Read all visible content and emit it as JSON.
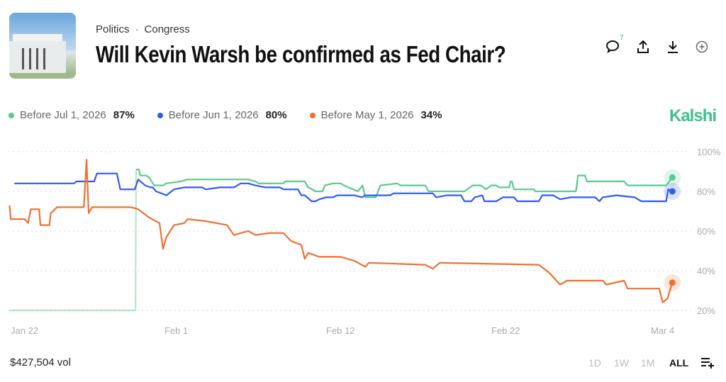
{
  "header": {
    "breadcrumb": [
      "Politics",
      "Congress"
    ],
    "breadcrumb_separator": "·",
    "title": "Will Kevin Warsh be confirmed as Fed Chair?",
    "comment_count": "7",
    "icons": [
      "comment-icon",
      "share-icon",
      "download-icon",
      "add-circle-icon"
    ]
  },
  "brand": {
    "logo_text": "Kalshi",
    "color": "#3fc08a"
  },
  "legend": [
    {
      "label": "Before Jul 1, 2026",
      "value": "87%",
      "color": "#5bc98f"
    },
    {
      "label": "Before Jun 1, 2026",
      "value": "80%",
      "color": "#2f5bf5"
    },
    {
      "label": "Before May 1, 2026",
      "value": "34%",
      "color": "#f07030"
    }
  ],
  "footer": {
    "volume": "$427,504 vol",
    "ranges": [
      "1D",
      "1W",
      "1M",
      "ALL"
    ],
    "selected_range": "ALL"
  },
  "chart_data": {
    "type": "line",
    "title": "",
    "xlabel": "",
    "ylabel": "",
    "x_ticks": [
      "Jan 22",
      "Feb 1",
      "Feb 12",
      "Feb 22",
      "Mar 4"
    ],
    "y_ticks": [
      "100%",
      "80%",
      "60%",
      "40%",
      "20%"
    ],
    "ylim": [
      20,
      100
    ],
    "grid": "horizontal dotted",
    "legend_position": "top-left",
    "series": [
      {
        "name": "Before Jul 1, 2026",
        "color": "#5bc98f",
        "points": [
          [
            "2026-01-22T21:00",
            20
          ],
          [
            "2026-01-30T12:00",
            20
          ],
          [
            "2026-01-30T13:00",
            91
          ],
          [
            "2026-01-30T17:00",
            91
          ],
          [
            "2026-01-30T19:00",
            88
          ],
          [
            "2026-01-31T03:00",
            88
          ],
          [
            "2026-01-31T08:00",
            87
          ],
          [
            "2026-01-31T15:00",
            83
          ],
          [
            "2026-02-01T04:00",
            83
          ],
          [
            "2026-02-01T09:00",
            84
          ],
          [
            "2026-02-02T06:00",
            85
          ],
          [
            "2026-02-02T16:00",
            86
          ],
          [
            "2026-02-06T08:00",
            86
          ],
          [
            "2026-02-06T18:00",
            85
          ],
          [
            "2026-02-06T23:00",
            84
          ],
          [
            "2026-02-08T11:00",
            84
          ],
          [
            "2026-02-08T13:00",
            85
          ],
          [
            "2026-02-09T18:00",
            85
          ],
          [
            "2026-02-09T23:00",
            82
          ],
          [
            "2026-02-10T10:00",
            80
          ],
          [
            "2026-02-10T20:00",
            80
          ],
          [
            "2026-02-10T23:00",
            83
          ],
          [
            "2026-02-11T11:00",
            84
          ],
          [
            "2026-02-11T22:00",
            84
          ],
          [
            "2026-02-12T03:00",
            83
          ],
          [
            "2026-02-12T23:00",
            80
          ],
          [
            "2026-02-13T06:00",
            83
          ],
          [
            "2026-02-13T10:00",
            77
          ],
          [
            "2026-02-14T01:00",
            77
          ],
          [
            "2026-02-14T08:00",
            83
          ],
          [
            "2026-02-15T08:00",
            84
          ],
          [
            "2026-02-15T13:00",
            83
          ],
          [
            "2026-02-17T01:00",
            83
          ],
          [
            "2026-02-17T06:00",
            80
          ],
          [
            "2026-02-19T10:00",
            80
          ],
          [
            "2026-02-19T22:00",
            83
          ],
          [
            "2026-02-20T10:00",
            83
          ],
          [
            "2026-02-20T17:00",
            81
          ],
          [
            "2026-02-21T01:00",
            83
          ],
          [
            "2026-02-21T08:00",
            83
          ],
          [
            "2026-02-21T13:00",
            82
          ],
          [
            "2026-02-22T03:00",
            82
          ],
          [
            "2026-02-22T05:00",
            85
          ],
          [
            "2026-02-22T07:00",
            85
          ],
          [
            "2026-02-22T10:00",
            81
          ],
          [
            "2026-02-23T15:00",
            81
          ],
          [
            "2026-02-23T17:00",
            80
          ],
          [
            "2026-02-26T04:00",
            80
          ],
          [
            "2026-02-26T07:00",
            88
          ],
          [
            "2026-02-26T17:00",
            88
          ],
          [
            "2026-02-26T20:00",
            85
          ],
          [
            "2026-03-01T02:00",
            85
          ],
          [
            "2026-03-01T07:00",
            83
          ],
          [
            "2026-03-03T15:00",
            83
          ],
          [
            "2026-03-04T00:00",
            87
          ]
        ]
      },
      {
        "name": "Before Jun 1, 2026",
        "color": "#2f5bf5",
        "points": [
          [
            "2026-01-23T04:00",
            84
          ],
          [
            "2026-01-26T19:00",
            84
          ],
          [
            "2026-01-26T22:00",
            85
          ],
          [
            "2026-01-28T00:00",
            85
          ],
          [
            "2026-01-28T04:00",
            89
          ],
          [
            "2026-01-29T09:00",
            89
          ],
          [
            "2026-01-29T14:00",
            81
          ],
          [
            "2026-01-30T11:00",
            81
          ],
          [
            "2026-01-30T16:00",
            86
          ],
          [
            "2026-01-31T02:00",
            83
          ],
          [
            "2026-01-31T10:00",
            82
          ],
          [
            "2026-01-31T13:00",
            82
          ],
          [
            "2026-01-31T18:00",
            80
          ],
          [
            "2026-02-01T09:00",
            78
          ],
          [
            "2026-02-01T20:00",
            81
          ],
          [
            "2026-02-02T11:00",
            82
          ],
          [
            "2026-02-03T13:00",
            82
          ],
          [
            "2026-02-03T18:00",
            81
          ],
          [
            "2026-02-04T15:00",
            82
          ],
          [
            "2026-02-05T11:00",
            82
          ],
          [
            "2026-02-05T21:00",
            84
          ],
          [
            "2026-02-06T08:00",
            84
          ],
          [
            "2026-02-06T18:00",
            83
          ],
          [
            "2026-02-07T09:00",
            82
          ],
          [
            "2026-02-08T06:00",
            82
          ],
          [
            "2026-02-08T11:00",
            81
          ],
          [
            "2026-02-09T08:00",
            81
          ],
          [
            "2026-02-09T13:00",
            78
          ],
          [
            "2026-02-09T18:00",
            78
          ],
          [
            "2026-02-10T04:00",
            75
          ],
          [
            "2026-02-10T10:00",
            75
          ],
          [
            "2026-02-10T15:00",
            76
          ],
          [
            "2026-02-11T01:00",
            77
          ],
          [
            "2026-02-11T11:00",
            77
          ],
          [
            "2026-02-11T17:00",
            78
          ],
          [
            "2026-02-12T18:00",
            78
          ],
          [
            "2026-02-13T05:00",
            77
          ],
          [
            "2026-02-13T10:00",
            78
          ],
          [
            "2026-02-14T22:00",
            78
          ],
          [
            "2026-02-15T03:00",
            79
          ],
          [
            "2026-02-17T12:00",
            79
          ],
          [
            "2026-02-17T17:00",
            77
          ],
          [
            "2026-02-18T08:00",
            78
          ],
          [
            "2026-02-19T05:00",
            78
          ],
          [
            "2026-02-19T10:00",
            75
          ],
          [
            "2026-02-19T20:00",
            75
          ],
          [
            "2026-02-20T01:00",
            77
          ],
          [
            "2026-02-20T12:00",
            78
          ],
          [
            "2026-02-20T15:00",
            75
          ],
          [
            "2026-02-21T08:00",
            75
          ],
          [
            "2026-02-21T18:00",
            77
          ],
          [
            "2026-02-22T10:00",
            77
          ],
          [
            "2026-02-22T15:00",
            75
          ],
          [
            "2026-02-23T22:00",
            75
          ],
          [
            "2026-02-24T03:00",
            78
          ],
          [
            "2026-02-24T19:00",
            78
          ],
          [
            "2026-02-25T05:00",
            76
          ],
          [
            "2026-02-25T20:00",
            77
          ],
          [
            "2026-02-27T08:00",
            77
          ],
          [
            "2026-02-27T14:00",
            75
          ],
          [
            "2026-02-27T19:00",
            77
          ],
          [
            "2026-02-28T15:00",
            78
          ],
          [
            "2026-03-01T17:00",
            77
          ],
          [
            "2026-03-02T03:00",
            75
          ],
          [
            "2026-03-03T15:00",
            75
          ],
          [
            "2026-03-03T18:00",
            81
          ],
          [
            "2026-03-04T00:00",
            80
          ]
        ]
      },
      {
        "name": "Before May 1, 2026",
        "color": "#f07030",
        "points": [
          [
            "2026-01-22T21:00",
            73
          ],
          [
            "2026-01-22T23:00",
            66
          ],
          [
            "2026-01-23T19:00",
            66
          ],
          [
            "2026-01-24T00:00",
            64
          ],
          [
            "2026-01-24T04:00",
            71
          ],
          [
            "2026-01-24T16:00",
            71
          ],
          [
            "2026-01-24T18:00",
            63
          ],
          [
            "2026-01-25T07:00",
            63
          ],
          [
            "2026-01-25T09:00",
            69
          ],
          [
            "2026-01-25T18:00",
            72
          ],
          [
            "2026-01-27T09:00",
            72
          ],
          [
            "2026-01-27T13:00",
            96
          ],
          [
            "2026-01-27T16:00",
            69
          ],
          [
            "2026-01-27T21:00",
            72
          ],
          [
            "2026-01-30T06:00",
            72
          ],
          [
            "2026-01-30T16:00",
            71
          ],
          [
            "2026-01-31T07:00",
            67
          ],
          [
            "2026-01-31T23:00",
            64
          ],
          [
            "2026-02-01T04:00",
            51
          ],
          [
            "2026-02-01T09:00",
            57
          ],
          [
            "2026-02-01T20:00",
            63
          ],
          [
            "2026-02-02T11:00",
            64
          ],
          [
            "2026-02-02T16:00",
            66
          ],
          [
            "2026-02-03T18:00",
            65
          ],
          [
            "2026-02-05T01:00",
            63
          ],
          [
            "2026-02-05T11:00",
            58
          ],
          [
            "2026-02-06T08:00",
            60
          ],
          [
            "2026-02-06T18:00",
            58
          ],
          [
            "2026-02-07T15:00",
            59
          ],
          [
            "2026-02-08T11:00",
            59
          ],
          [
            "2026-02-08T22:00",
            55
          ],
          [
            "2026-02-09T13:00",
            53
          ],
          [
            "2026-02-09T18:00",
            46
          ],
          [
            "2026-02-09T23:00",
            49
          ],
          [
            "2026-02-10T15:00",
            47
          ],
          [
            "2026-02-11T22:00",
            47
          ],
          [
            "2026-02-12T18:00",
            45
          ],
          [
            "2026-02-13T10:00",
            42
          ],
          [
            "2026-02-13T15:00",
            44
          ],
          [
            "2026-02-17T01:00",
            43
          ],
          [
            "2026-02-17T12:00",
            41
          ],
          [
            "2026-02-17T22:00",
            44
          ],
          [
            "2026-02-23T22:00",
            43
          ],
          [
            "2026-02-24T13:00",
            39
          ],
          [
            "2026-02-25T05:00",
            33
          ],
          [
            "2026-02-25T15:00",
            35
          ],
          [
            "2026-02-27T19:00",
            35
          ],
          [
            "2026-02-28T00:00",
            33
          ],
          [
            "2026-03-01T02:00",
            35
          ],
          [
            "2026-03-01T07:00",
            31
          ],
          [
            "2026-03-03T05:00",
            31
          ],
          [
            "2026-03-03T10:00",
            24
          ],
          [
            "2026-03-03T17:00",
            26
          ],
          [
            "2026-03-04T00:00",
            34
          ]
        ]
      }
    ]
  }
}
